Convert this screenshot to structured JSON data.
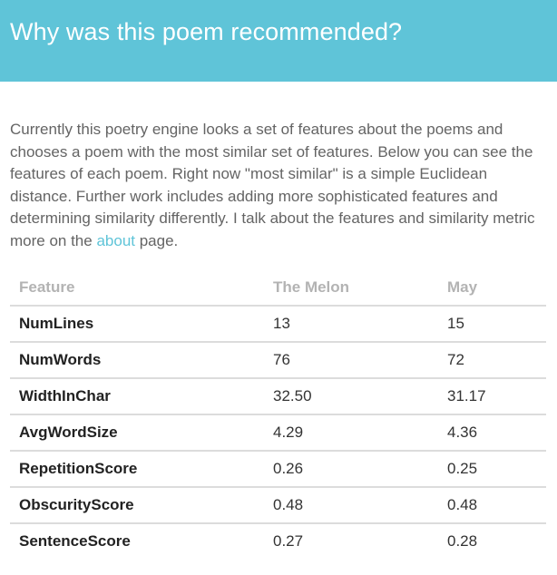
{
  "header": {
    "title": "Why was this poem recommended?"
  },
  "intro": {
    "text_before_link": "Currently this poetry engine looks a set of features about the poems and chooses a poem with the most similar set of features. Below you can see the features of each poem. Right now \"most similar\" is a simple Euclidean distance. Further work includes adding more sophisticated features and determining similarity differently. I talk about the features and similarity metric more on the ",
    "link_text": "about",
    "text_after_link": " page."
  },
  "table": {
    "headers": [
      "Feature",
      "The Melon",
      "May"
    ],
    "rows": [
      [
        "NumLines",
        "13",
        "15"
      ],
      [
        "NumWords",
        "76",
        "72"
      ],
      [
        "WidthInChar",
        "32.50",
        "31.17"
      ],
      [
        "AvgWordSize",
        "4.29",
        "4.36"
      ],
      [
        "RepetitionScore",
        "0.26",
        "0.25"
      ],
      [
        "ObscurityScore",
        "0.48",
        "0.48"
      ],
      [
        "SentenceScore",
        "0.27",
        "0.28"
      ]
    ]
  },
  "colors": {
    "accent": "#5fc4d8",
    "body_text": "#646464",
    "header_text": "#ffffff"
  }
}
